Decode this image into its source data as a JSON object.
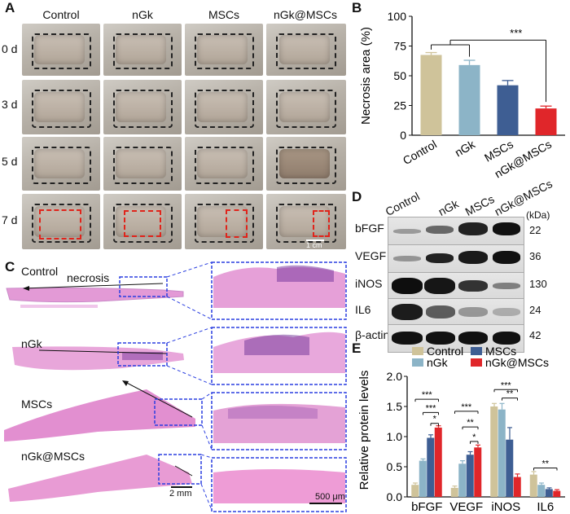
{
  "panels": {
    "A": "A",
    "B": "B",
    "C": "C",
    "D": "D",
    "E": "E"
  },
  "panelA": {
    "columns": [
      "Control",
      "nGk",
      "MSCs",
      "nGk@MSCs"
    ],
    "rows": [
      "0 d",
      "3 d",
      "5 d",
      "7 d"
    ],
    "scale_bar": "1 cm"
  },
  "panelC": {
    "rows": [
      "Control",
      "nGk",
      "MSCs",
      "nGk@MSCs"
    ],
    "annotation": "necrosis",
    "scale_left": "2 mm",
    "scale_right": "500 μm"
  },
  "panelD": {
    "columns": [
      "Control",
      "nGk",
      "MSCs",
      "nGk@MSCs"
    ],
    "unit": "(kDa)",
    "blots": [
      {
        "name": "bFGF",
        "kda": "22"
      },
      {
        "name": "VEGF",
        "kda": "36"
      },
      {
        "name": "iNOS",
        "kda": "130"
      },
      {
        "name": "IL6",
        "kda": "24"
      },
      {
        "name": "β-actin",
        "kda": "42"
      }
    ]
  },
  "chart_data": [
    {
      "type": "bar",
      "panel": "B",
      "categories": [
        "Control",
        "nGk",
        "MSCs",
        "nGk@MSCs"
      ],
      "values": [
        67.5,
        59,
        42,
        22.5
      ],
      "errors": [
        2,
        4,
        4,
        2
      ],
      "colors": [
        "#cfc39a",
        "#8cb4c7",
        "#3e5e93",
        "#e0262a"
      ],
      "ylabel": "Necrosis area (%)",
      "ylim": [
        0,
        100
      ],
      "yticks": [
        "0",
        "25",
        "50",
        "75",
        "100"
      ],
      "significance": "***"
    },
    {
      "type": "bar",
      "panel": "E",
      "categories": [
        "bFGF",
        "VEGF",
        "iNOS",
        "IL6"
      ],
      "ylabel": "Relative protein levels",
      "ylim": [
        0,
        2.0
      ],
      "yticks": [
        "0.0",
        "0.5",
        "1.0",
        "1.5",
        "2.0"
      ],
      "legend_position": "top",
      "series": [
        {
          "name": "Control",
          "color": "#cfc39a",
          "values": [
            0.2,
            0.15,
            1.5,
            0.37
          ],
          "errors": [
            0.03,
            0.03,
            0.05,
            0.05
          ]
        },
        {
          "name": "nGk",
          "color": "#8cb4c7",
          "values": [
            0.6,
            0.55,
            1.45,
            0.2
          ],
          "errors": [
            0.03,
            0.05,
            0.1,
            0.03
          ]
        },
        {
          "name": "MSCs",
          "color": "#3e5e93",
          "values": [
            0.98,
            0.7,
            0.95,
            0.13
          ],
          "errors": [
            0.05,
            0.05,
            0.2,
            0.02
          ]
        },
        {
          "name": "nGk@MSCs",
          "color": "#e0262a",
          "values": [
            1.15,
            0.82,
            0.33,
            0.1
          ],
          "errors": [
            0.03,
            0.04,
            0.05,
            0.02
          ]
        }
      ],
      "sig_labels": [
        "***",
        "***",
        "*",
        "***",
        "**",
        "*",
        "***",
        "**",
        "**"
      ]
    }
  ]
}
